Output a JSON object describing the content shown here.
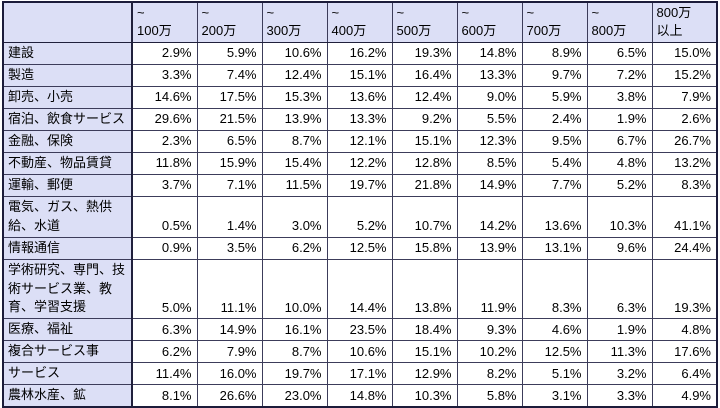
{
  "table": {
    "corner_label": "",
    "columns": [
      "~\n100万",
      "~\n200万",
      "~\n300万",
      "~\n400万",
      "~\n500万",
      "~\n600万",
      "~\n700万",
      "~\n800万",
      "800万\n以上"
    ],
    "rows": [
      {
        "label": "建設",
        "values": [
          "2.9%",
          "5.9%",
          "10.6%",
          "16.2%",
          "19.3%",
          "14.8%",
          "8.9%",
          "6.5%",
          "15.0%"
        ]
      },
      {
        "label": "製造",
        "values": [
          "3.3%",
          "7.4%",
          "12.4%",
          "15.1%",
          "16.4%",
          "13.3%",
          "9.7%",
          "7.2%",
          "15.2%"
        ]
      },
      {
        "label": "卸売、小売",
        "values": [
          "14.6%",
          "17.5%",
          "15.3%",
          "13.6%",
          "12.4%",
          "9.0%",
          "5.9%",
          "3.8%",
          "7.9%"
        ]
      },
      {
        "label": "宿泊、飲食サービス",
        "values": [
          "29.6%",
          "21.5%",
          "13.9%",
          "13.3%",
          "9.2%",
          "5.5%",
          "2.4%",
          "1.9%",
          "2.6%"
        ]
      },
      {
        "label": "金融、保険",
        "values": [
          "2.3%",
          "6.5%",
          "8.7%",
          "12.1%",
          "15.1%",
          "12.3%",
          "9.5%",
          "6.7%",
          "26.7%"
        ]
      },
      {
        "label": "不動産、物品賃貸",
        "values": [
          "11.8%",
          "15.9%",
          "15.4%",
          "12.2%",
          "12.8%",
          "8.5%",
          "5.4%",
          "4.8%",
          "13.2%"
        ]
      },
      {
        "label": "運輸、郵便",
        "values": [
          "3.7%",
          "7.1%",
          "11.5%",
          "19.7%",
          "21.8%",
          "14.9%",
          "7.7%",
          "5.2%",
          "8.3%"
        ]
      },
      {
        "label": "電気、ガス、熱供給、水道",
        "values": [
          "0.5%",
          "1.4%",
          "3.0%",
          "5.2%",
          "10.7%",
          "14.2%",
          "13.6%",
          "10.3%",
          "41.1%"
        ]
      },
      {
        "label": "情報通信",
        "values": [
          "0.9%",
          "3.5%",
          "6.2%",
          "12.5%",
          "15.8%",
          "13.9%",
          "13.1%",
          "9.6%",
          "24.4%"
        ]
      },
      {
        "label": "学術研究、専門、技術サービス業、教育、学習支援",
        "values": [
          "5.0%",
          "11.1%",
          "10.0%",
          "14.4%",
          "13.8%",
          "11.9%",
          "8.3%",
          "6.3%",
          "19.3%"
        ]
      },
      {
        "label": "医療、福祉",
        "values": [
          "6.3%",
          "14.9%",
          "16.1%",
          "23.5%",
          "18.4%",
          "9.3%",
          "4.6%",
          "1.9%",
          "4.8%"
        ]
      },
      {
        "label": "複合サービス事",
        "values": [
          "6.2%",
          "7.9%",
          "8.7%",
          "10.6%",
          "15.1%",
          "10.2%",
          "12.5%",
          "11.3%",
          "17.6%"
        ]
      },
      {
        "label": "サービス",
        "values": [
          "11.4%",
          "16.0%",
          "19.7%",
          "17.1%",
          "12.9%",
          "8.2%",
          "5.1%",
          "3.2%",
          "6.4%"
        ]
      },
      {
        "label": "農林水産、鉱",
        "values": [
          "8.1%",
          "26.6%",
          "23.0%",
          "14.8%",
          "10.3%",
          "5.8%",
          "3.1%",
          "3.3%",
          "4.9%"
        ]
      }
    ]
  },
  "colors": {
    "header_background": "#dcdff6",
    "cell_background": "#ffffff",
    "border": "#1c1c3a",
    "text": "#000000"
  },
  "chart_data": {
    "type": "table",
    "title": "",
    "categories": [
      "~100万",
      "~200万",
      "~300万",
      "~400万",
      "~500万",
      "~600万",
      "~700万",
      "~800万",
      "800万以上"
    ],
    "unit": "%",
    "series": [
      {
        "name": "建設",
        "values": [
          2.9,
          5.9,
          10.6,
          16.2,
          19.3,
          14.8,
          8.9,
          6.5,
          15.0
        ]
      },
      {
        "name": "製造",
        "values": [
          3.3,
          7.4,
          12.4,
          15.1,
          16.4,
          13.3,
          9.7,
          7.2,
          15.2
        ]
      },
      {
        "name": "卸売、小売",
        "values": [
          14.6,
          17.5,
          15.3,
          13.6,
          12.4,
          9.0,
          5.9,
          3.8,
          7.9
        ]
      },
      {
        "name": "宿泊、飲食サービス",
        "values": [
          29.6,
          21.5,
          13.9,
          13.3,
          9.2,
          5.5,
          2.4,
          1.9,
          2.6
        ]
      },
      {
        "name": "金融、保険",
        "values": [
          2.3,
          6.5,
          8.7,
          12.1,
          15.1,
          12.3,
          9.5,
          6.7,
          26.7
        ]
      },
      {
        "name": "不動産、物品賃貸",
        "values": [
          11.8,
          15.9,
          15.4,
          12.2,
          12.8,
          8.5,
          5.4,
          4.8,
          13.2
        ]
      },
      {
        "name": "運輸、郵便",
        "values": [
          3.7,
          7.1,
          11.5,
          19.7,
          21.8,
          14.9,
          7.7,
          5.2,
          8.3
        ]
      },
      {
        "name": "電気、ガス、熱供給、水道",
        "values": [
          0.5,
          1.4,
          3.0,
          5.2,
          10.7,
          14.2,
          13.6,
          10.3,
          41.1
        ]
      },
      {
        "name": "情報通信",
        "values": [
          0.9,
          3.5,
          6.2,
          12.5,
          15.8,
          13.9,
          13.1,
          9.6,
          24.4
        ]
      },
      {
        "name": "学術研究、専門、技術サービス業、教育、学習支援",
        "values": [
          5.0,
          11.1,
          10.0,
          14.4,
          13.8,
          11.9,
          8.3,
          6.3,
          19.3
        ]
      },
      {
        "name": "医療、福祉",
        "values": [
          6.3,
          14.9,
          16.1,
          23.5,
          18.4,
          9.3,
          4.6,
          1.9,
          4.8
        ]
      },
      {
        "name": "複合サービス事",
        "values": [
          6.2,
          7.9,
          8.7,
          10.6,
          15.1,
          10.2,
          12.5,
          11.3,
          17.6
        ]
      },
      {
        "name": "サービス",
        "values": [
          11.4,
          16.0,
          19.7,
          17.1,
          12.9,
          8.2,
          5.1,
          3.2,
          6.4
        ]
      },
      {
        "name": "農林水産、鉱",
        "values": [
          8.1,
          26.6,
          23.0,
          14.8,
          10.3,
          5.8,
          3.1,
          3.3,
          4.9
        ]
      }
    ]
  }
}
